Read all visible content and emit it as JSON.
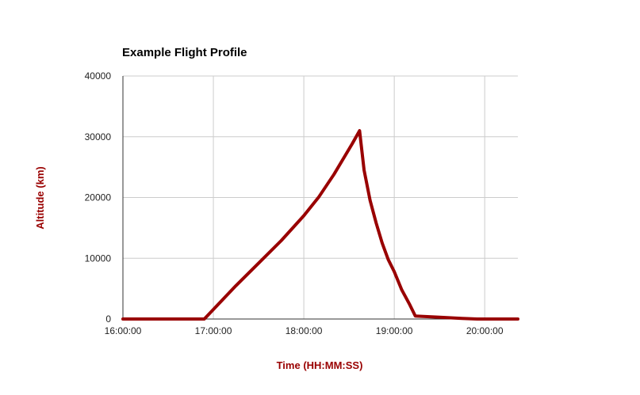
{
  "chart_data": {
    "type": "line",
    "title": "Example Flight Profile",
    "xlabel": "Time (HH:MM:SS)",
    "ylabel": "Altitude (km)",
    "x_ticks": [
      "16:00:00",
      "17:00:00",
      "18:00:00",
      "19:00:00",
      "20:00:00"
    ],
    "y_ticks": [
      "0",
      "10000",
      "20000",
      "30000",
      "40000"
    ],
    "xlim": [
      "16:00:00",
      "20:22:00"
    ],
    "ylim": [
      0,
      40000
    ],
    "grid": true,
    "legend": "none",
    "series": [
      {
        "color": "#990000",
        "points": [
          {
            "x": "16:00:00",
            "y": 0
          },
          {
            "x": "16:30:00",
            "y": 0
          },
          {
            "x": "16:54:00",
            "y": 0
          },
          {
            "x": "17:15:00",
            "y": 5500
          },
          {
            "x": "17:30:00",
            "y": 9200
          },
          {
            "x": "17:45:00",
            "y": 12900
          },
          {
            "x": "18:00:00",
            "y": 17000
          },
          {
            "x": "18:10:00",
            "y": 20100
          },
          {
            "x": "18:20:00",
            "y": 23800
          },
          {
            "x": "18:32:00",
            "y": 28800
          },
          {
            "x": "18:37:00",
            "y": 31000
          },
          {
            "x": "18:40:00",
            "y": 24500
          },
          {
            "x": "18:44:00",
            "y": 19500
          },
          {
            "x": "18:48:00",
            "y": 15800
          },
          {
            "x": "18:52:00",
            "y": 12500
          },
          {
            "x": "18:56:00",
            "y": 9800
          },
          {
            "x": "19:00:00",
            "y": 7800
          },
          {
            "x": "19:05:00",
            "y": 4800
          },
          {
            "x": "19:10:00",
            "y": 2500
          },
          {
            "x": "19:14:00",
            "y": 500
          },
          {
            "x": "19:30:00",
            "y": 300
          },
          {
            "x": "19:45:00",
            "y": 100
          },
          {
            "x": "19:55:00",
            "y": 0
          },
          {
            "x": "20:22:00",
            "y": 0
          }
        ]
      }
    ],
    "colors": {
      "line": "#990000",
      "axis_label": "#990000",
      "grid": "#cccccc",
      "axis": "#333333"
    }
  }
}
